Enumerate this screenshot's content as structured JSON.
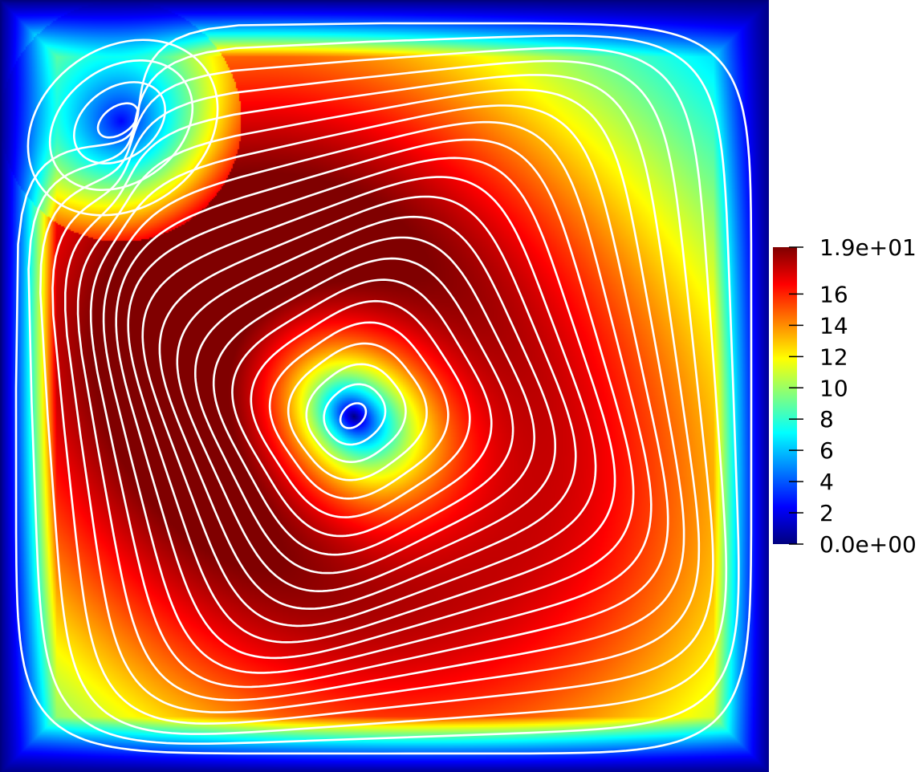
{
  "chart_data": {
    "type": "heatmap",
    "title": "",
    "xlabel": "",
    "ylabel": "",
    "description_of_field": "velocity-magnitude contour of a square cavity flow with white streamlines",
    "colormap": "jet",
    "colors": {
      "low": "#00007f",
      "mid_low": "#0000ff",
      "mid": "#00ffff",
      "mid_high": "#ffff00",
      "high": "#ff0000",
      "top": "#7f0000",
      "streamline": "#ffffff"
    },
    "range": [
      0,
      19
    ],
    "colorbar": {
      "min_label": "0.0e+00",
      "max_label": "1.9e+01",
      "ticks": [
        {
          "value": 19,
          "label": "1.9e+01"
        },
        {
          "value": 16,
          "label": "16"
        },
        {
          "value": 14,
          "label": "14"
        },
        {
          "value": 12,
          "label": "12"
        },
        {
          "value": 10,
          "label": "10"
        },
        {
          "value": 8,
          "label": "8"
        },
        {
          "value": 6,
          "label": "6"
        },
        {
          "value": 4,
          "label": "4"
        },
        {
          "value": 2,
          "label": "2"
        },
        {
          "value": 0,
          "label": "0.0e+00"
        }
      ]
    },
    "streamline_count": 22,
    "features": {
      "primary_vortex_min": 0,
      "peak_ring_value": 19,
      "secondary_vortex_corner": "top-left"
    }
  }
}
